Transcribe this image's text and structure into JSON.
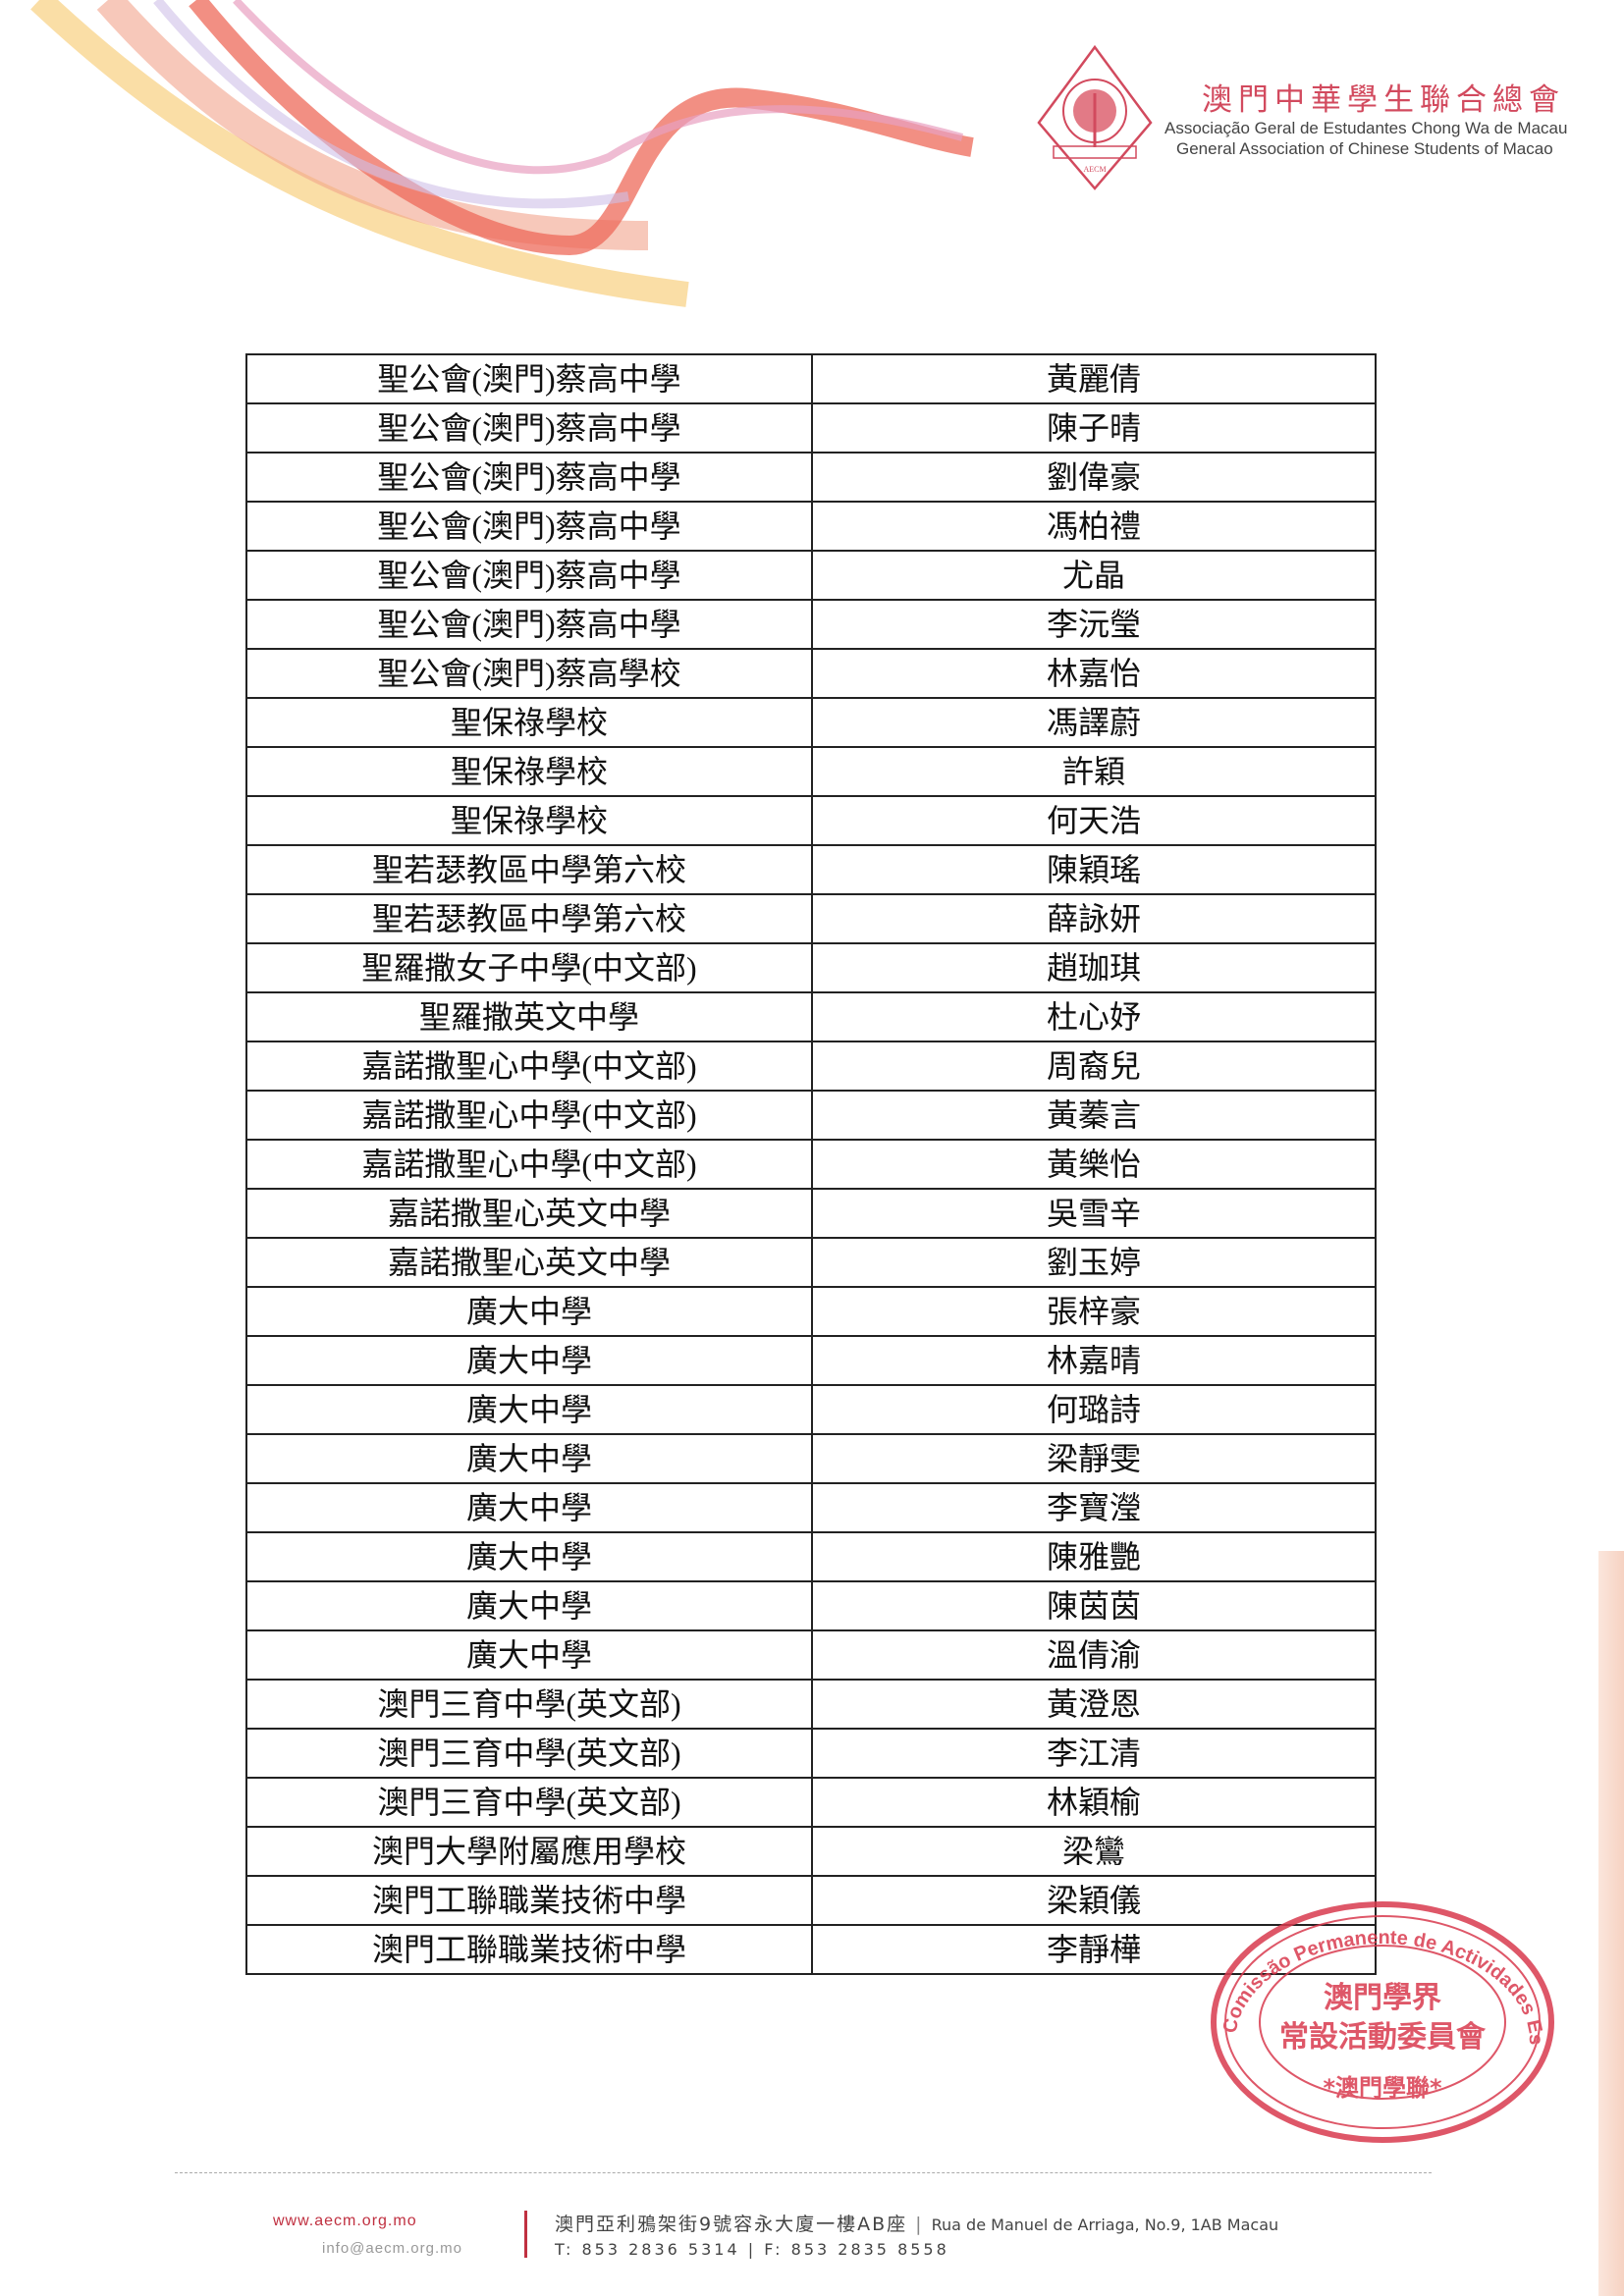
{
  "header": {
    "org_name_cn": "澳門中華學生聯合總會",
    "org_name_pt": "Associação Geral de Estudantes Chong Wa de Macau",
    "org_name_en": "General Association of Chinese Students of Macao",
    "logo_text": "AECM",
    "brand_color": "#d24a5e"
  },
  "table": {
    "rows": [
      {
        "school": "聖公會(澳門)蔡高中學",
        "name": "黃麗倩"
      },
      {
        "school": "聖公會(澳門)蔡高中學",
        "name": "陳子晴"
      },
      {
        "school": "聖公會(澳門)蔡高中學",
        "name": "劉偉豪"
      },
      {
        "school": "聖公會(澳門)蔡高中學",
        "name": "馮柏禮"
      },
      {
        "school": "聖公會(澳門)蔡高中學",
        "name": "尤晶"
      },
      {
        "school": "聖公會(澳門)蔡高中學",
        "name": "李沅瑩"
      },
      {
        "school": "聖公會(澳門)蔡高學校",
        "name": "林嘉怡"
      },
      {
        "school": "聖保祿學校",
        "name": "馮譯蔚"
      },
      {
        "school": "聖保祿學校",
        "name": "許穎"
      },
      {
        "school": "聖保祿學校",
        "name": "何天浩"
      },
      {
        "school": "聖若瑟教區中學第六校",
        "name": "陳穎瑤"
      },
      {
        "school": "聖若瑟教區中學第六校",
        "name": "薛詠妍"
      },
      {
        "school": "聖羅撒女子中學(中文部)",
        "name": "趙珈琪"
      },
      {
        "school": "聖羅撒英文中學",
        "name": "杜心妤"
      },
      {
        "school": "嘉諾撒聖心中學(中文部)",
        "name": "周裔兒"
      },
      {
        "school": "嘉諾撒聖心中學(中文部)",
        "name": "黃蓁言"
      },
      {
        "school": "嘉諾撒聖心中學(中文部)",
        "name": "黃樂怡"
      },
      {
        "school": "嘉諾撒聖心英文中學",
        "name": "吳雪辛"
      },
      {
        "school": "嘉諾撒聖心英文中學",
        "name": "劉玉婷"
      },
      {
        "school": "廣大中學",
        "name": "張梓豪"
      },
      {
        "school": "廣大中學",
        "name": "林嘉晴"
      },
      {
        "school": "廣大中學",
        "name": "何璐詩"
      },
      {
        "school": "廣大中學",
        "name": "梁靜雯"
      },
      {
        "school": "廣大中學",
        "name": "李寶瀅"
      },
      {
        "school": "廣大中學",
        "name": "陳雅艷"
      },
      {
        "school": "廣大中學",
        "name": "陳茵茵"
      },
      {
        "school": "廣大中學",
        "name": "溫倩渝"
      },
      {
        "school": "澳門三育中學(英文部)",
        "name": "黃澄恩"
      },
      {
        "school": "澳門三育中學(英文部)",
        "name": "李江清"
      },
      {
        "school": "澳門三育中學(英文部)",
        "name": "林穎榆"
      },
      {
        "school": "澳門大學附屬應用學校",
        "name": "梁鸞"
      },
      {
        "school": "澳門工聯職業技術中學",
        "name": "梁穎儀"
      },
      {
        "school": "澳門工聯職業技術中學",
        "name": "李靜樺"
      }
    ]
  },
  "stamp": {
    "outer_text": "Comissão Permanente de Actividades Escolares da AECM",
    "inner_line1": "澳門學界",
    "inner_line2": "常設活動委員會",
    "bottom_text": "*澳門學聯*",
    "color": "#d93a4e"
  },
  "footer": {
    "website": "www.aecm.org.mo",
    "email": "info@aecm.org.mo",
    "address_cn": "澳門亞利鴉架街9號容永大廈一樓AB座",
    "address_pt": "Rua de Manuel de Arriaga, No.9, 1AB Macau",
    "phone": "T: 853 2836 5314 | F: 853 2835 8558"
  }
}
